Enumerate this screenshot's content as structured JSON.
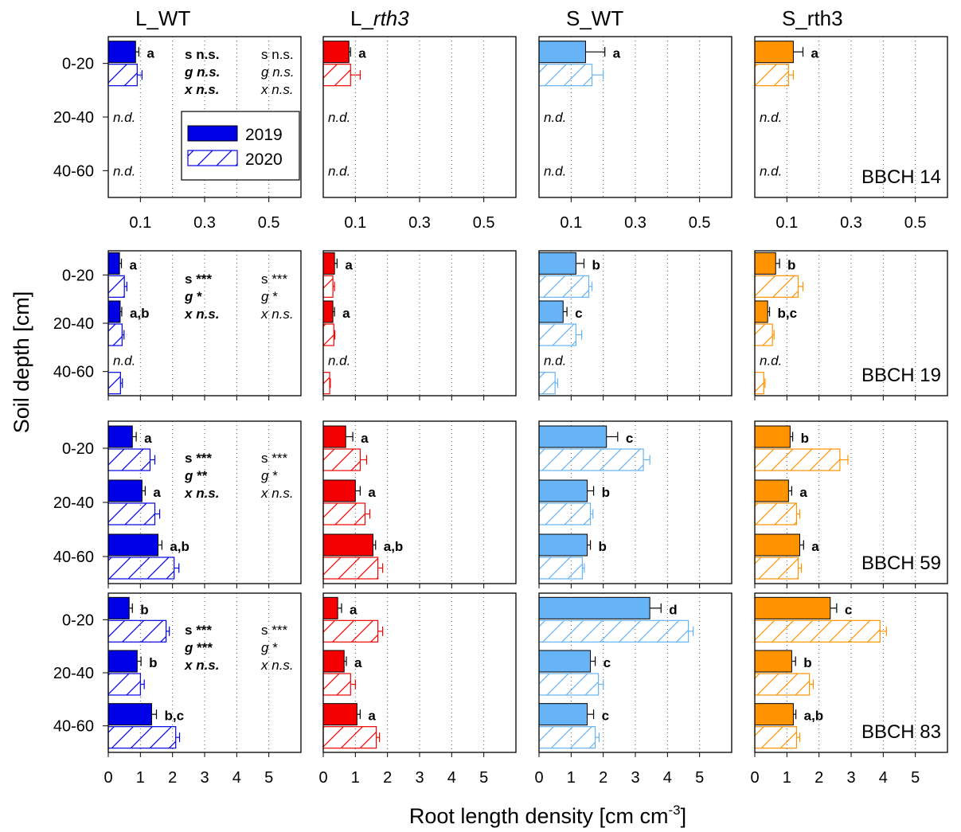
{
  "chart_data": {
    "type": "bar",
    "orientation": "horizontal",
    "xlabel": "Root length density [cm cm",
    "xlabel_sup": "-3",
    "xlabel_end": "]",
    "ylabel": "Soil depth [cm]",
    "columns": [
      {
        "title": "L_WT",
        "italic_part": "",
        "color": "#0000E6",
        "edge": "#0000E6"
      },
      {
        "title": "L_",
        "italic_part": "rth3",
        "color": "#F50000",
        "edge": "#F50000"
      },
      {
        "title": "S_WT",
        "italic_part": "",
        "color": "#66B3F5",
        "edge": "#66B3F5"
      },
      {
        "title": "S_rth3",
        "italic_part": "",
        "color": "#FF9300",
        "edge": "#FF9300"
      }
    ],
    "depths": [
      "0-20",
      "20-40",
      "40-60"
    ],
    "legend": [
      "2019",
      "2020"
    ],
    "nd_label": "n.d.",
    "rows": [
      {
        "stage": "BBCH 14",
        "xticks": [
          "0.1",
          "0.3",
          "0.5"
        ],
        "xtick_vals": [
          0.1,
          0.3,
          0.5
        ],
        "xlim": [
          0,
          0.6
        ],
        "panels": [
          {
            "bars2019": [
              0.085,
              null,
              null
            ],
            "err2019": [
              0.01,
              0,
              0
            ],
            "bars2020": [
              0.09,
              null,
              null
            ],
            "err2020": [
              0.015,
              0,
              0
            ],
            "letters": [
              "a",
              "n.d.",
              "n.d."
            ]
          },
          {
            "bars2019": [
              0.08,
              null,
              null
            ],
            "err2019": [
              0.005,
              0,
              0
            ],
            "bars2020": [
              0.085,
              null,
              null
            ],
            "err2020": [
              0.03,
              0,
              0
            ],
            "letters": [
              "a",
              "n.d.",
              "n.d."
            ]
          },
          {
            "bars2019": [
              0.145,
              null,
              null
            ],
            "err2019": [
              0.06,
              0,
              0
            ],
            "bars2020": [
              0.165,
              null,
              null
            ],
            "err2020": [
              0.035,
              0,
              0
            ],
            "letters": [
              "a",
              "n.d.",
              "n.d."
            ]
          },
          {
            "bars2019": [
              0.12,
              null,
              null
            ],
            "err2019": [
              0.03,
              0,
              0
            ],
            "bars2020": [
              0.105,
              null,
              null
            ],
            "err2020": [
              0.015,
              0,
              0
            ],
            "letters": [
              "a",
              "n.d.",
              "n.d."
            ]
          }
        ],
        "stats_bold": [
          "s n.s.",
          "g n.s.",
          "x n.s."
        ],
        "stats_plain": [
          "s n.s.",
          "g n.s.",
          "x n.s."
        ]
      },
      {
        "stage": "BBCH 19",
        "xticks": [],
        "xtick_vals": [],
        "xlim": [
          0,
          6
        ],
        "panels": [
          {
            "bars2019": [
              0.35,
              0.37,
              null
            ],
            "err2019": [
              0.06,
              0.05,
              0
            ],
            "bars2020": [
              0.5,
              0.43,
              0.38
            ],
            "err2020": [
              0.08,
              0.06,
              0.06
            ],
            "letters": [
              "a",
              "a,b",
              "n.d."
            ]
          },
          {
            "bars2019": [
              0.35,
              0.3,
              null
            ],
            "err2019": [
              0.08,
              0.05,
              0
            ],
            "bars2020": [
              0.3,
              0.33,
              0.2
            ],
            "err2020": [
              0.05,
              0.03,
              0.02
            ],
            "letters": [
              "a",
              "a",
              "n.d."
            ]
          },
          {
            "bars2019": [
              1.15,
              0.75,
              null
            ],
            "err2019": [
              0.25,
              0.12,
              0
            ],
            "bars2020": [
              1.55,
              1.15,
              0.5
            ],
            "err2020": [
              0.1,
              0.18,
              0.08
            ],
            "letters": [
              "b",
              "c",
              "n.d."
            ]
          },
          {
            "bars2019": [
              0.65,
              0.4,
              null
            ],
            "err2019": [
              0.12,
              0.06,
              0
            ],
            "bars2020": [
              1.35,
              0.55,
              0.28
            ],
            "err2020": [
              0.15,
              0.05,
              0.04
            ],
            "letters": [
              "b",
              "b,c",
              "n.d."
            ]
          }
        ],
        "stats_bold": [
          "s ***",
          "g *",
          "x n.s."
        ],
        "stats_plain": [
          "s ***",
          "g *",
          "x n.s."
        ]
      },
      {
        "stage": "BBCH 59",
        "xticks": [],
        "xtick_vals": [],
        "xlim": [
          0,
          6
        ],
        "panels": [
          {
            "bars2019": [
              0.75,
              1.05,
              1.55
            ],
            "err2019": [
              0.12,
              0.1,
              0.12
            ],
            "bars2020": [
              1.3,
              1.45,
              2.05
            ],
            "err2020": [
              0.15,
              0.15,
              0.15
            ],
            "letters": [
              "a",
              "a",
              "a,b"
            ]
          },
          {
            "bars2019": [
              0.7,
              1.0,
              1.55
            ],
            "err2019": [
              0.22,
              0.15,
              0.08
            ],
            "bars2020": [
              1.15,
              1.3,
              1.7
            ],
            "err2020": [
              0.2,
              0.15,
              0.15
            ],
            "letters": [
              "a",
              "a",
              "a,b"
            ]
          },
          {
            "bars2019": [
              2.1,
              1.5,
              1.5
            ],
            "err2019": [
              0.35,
              0.2,
              0.1
            ],
            "bars2020": [
              3.25,
              1.6,
              1.35
            ],
            "err2020": [
              0.2,
              0.08,
              0.06
            ],
            "letters": [
              "c",
              "b",
              "b"
            ]
          },
          {
            "bars2019": [
              1.1,
              1.05,
              1.4
            ],
            "err2019": [
              0.08,
              0.1,
              0.12
            ],
            "bars2020": [
              2.65,
              1.3,
              1.35
            ],
            "err2020": [
              0.25,
              0.1,
              0.1
            ],
            "letters": [
              "b",
              "a",
              "a"
            ]
          }
        ],
        "stats_bold": [
          "s ***",
          "g **",
          "x n.s."
        ],
        "stats_plain": [
          "s ***",
          "g *",
          "x n.s."
        ]
      },
      {
        "stage": "BBCH 83",
        "xticks": [
          "0",
          "1",
          "2",
          "3",
          "4",
          "5"
        ],
        "xtick_vals": [
          0,
          1,
          2,
          3,
          4,
          5
        ],
        "xlim": [
          0,
          6
        ],
        "panels": [
          {
            "bars2019": [
              0.65,
              0.9,
              1.35
            ],
            "err2019": [
              0.1,
              0.12,
              0.15
            ],
            "bars2020": [
              1.8,
              1.0,
              2.1
            ],
            "err2020": [
              0.1,
              0.12,
              0.12
            ],
            "letters": [
              "b",
              "b",
              "b,c"
            ]
          },
          {
            "bars2019": [
              0.45,
              0.65,
              1.05
            ],
            "err2019": [
              0.12,
              0.07,
              0.1
            ],
            "bars2020": [
              1.7,
              0.85,
              1.65
            ],
            "err2020": [
              0.15,
              0.15,
              0.1
            ],
            "letters": [
              "a",
              "a",
              "a"
            ]
          },
          {
            "bars2019": [
              3.45,
              1.6,
              1.5
            ],
            "err2019": [
              0.35,
              0.15,
              0.2
            ],
            "bars2020": [
              4.65,
              1.85,
              1.75
            ],
            "err2020": [
              0.15,
              0.15,
              0.12
            ],
            "letters": [
              "d",
              "c",
              "c"
            ]
          },
          {
            "bars2019": [
              2.35,
              1.15,
              1.2
            ],
            "err2019": [
              0.2,
              0.12,
              0.08
            ],
            "bars2020": [
              3.9,
              1.7,
              1.3
            ],
            "err2020": [
              0.2,
              0.12,
              0.1
            ],
            "letters": [
              "c",
              "b",
              "a,b"
            ]
          }
        ],
        "stats_bold": [
          "s ***",
          "g ***",
          "x n.s."
        ],
        "stats_plain": [
          "s ***",
          "g *",
          "x n.s."
        ]
      }
    ]
  }
}
